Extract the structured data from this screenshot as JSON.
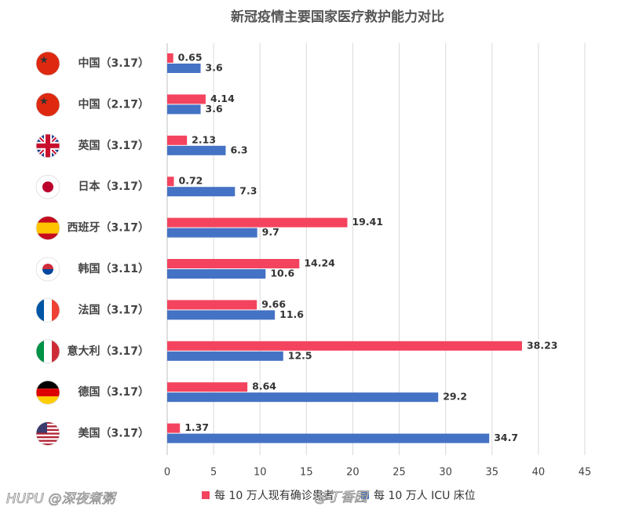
{
  "chart_data": {
    "type": "hbar",
    "title": "新冠疫情主要国家医疗救护能力对比",
    "categories": [
      "中国（3.17）",
      "中国（2.17）",
      "英国（3.17）",
      "日本（3.17）",
      "西班牙（3.17）",
      "韩国（3.11）",
      "法国（3.17）",
      "意大利（3.17）",
      "德国（3.17）",
      "美国（3.17）"
    ],
    "series": [
      {
        "name": "每 10 万人现有确诊患者",
        "color": "#f4435e",
        "values": [
          0.65,
          4.14,
          2.13,
          0.72,
          19.41,
          14.24,
          9.66,
          38.23,
          8.64,
          1.37
        ]
      },
      {
        "name": "每 10 万人 ICU 床位",
        "color": "#4472c4",
        "values": [
          3.6,
          3.6,
          6.3,
          7.3,
          9.7,
          10.6,
          11.6,
          12.5,
          29.2,
          34.7
        ]
      }
    ],
    "xlim": [
      0,
      45
    ],
    "xticks": [
      0,
      5,
      10,
      15,
      20,
      25,
      30,
      35,
      40,
      45
    ],
    "grid": true,
    "legend": "bottom"
  },
  "watermarks": [
    "HUPU @深夜煮粥",
    "@丁香园"
  ]
}
